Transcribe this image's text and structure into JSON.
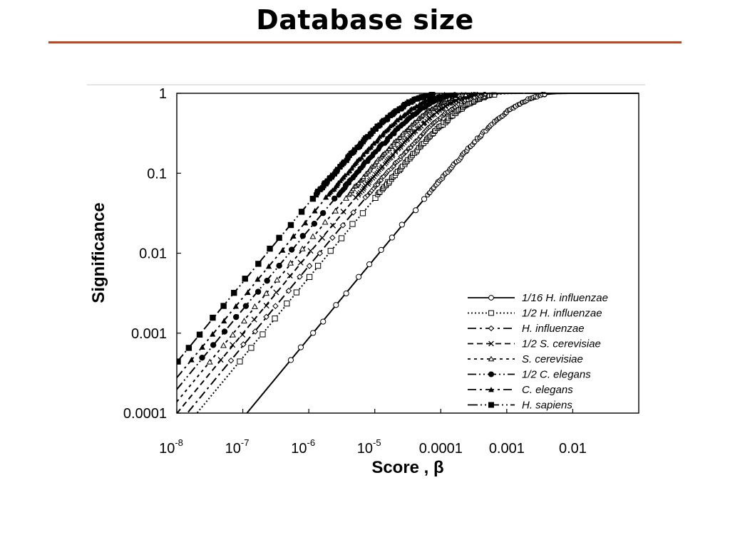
{
  "slide": {
    "title": "Database size"
  },
  "chart_data": {
    "type": "line",
    "xlabel": "Score , β",
    "ylabel": "Significance",
    "x_scale": "log",
    "y_scale": "log",
    "xlim": [
      1e-08,
      0.1
    ],
    "ylim": [
      0.0001,
      1
    ],
    "x_ticks": [
      {
        "v": 1e-08,
        "base": "10",
        "exp": "-8"
      },
      {
        "v": 1e-07,
        "base": "10",
        "exp": "-7"
      },
      {
        "v": 1e-06,
        "base": "10",
        "exp": "-6"
      },
      {
        "v": 1e-05,
        "base": "10",
        "exp": "-5"
      },
      {
        "v": 0.0001,
        "label": "0.0001"
      },
      {
        "v": 0.001,
        "label": "0.001"
      },
      {
        "v": 0.01,
        "label": "0.01"
      }
    ],
    "y_ticks": [
      {
        "v": 1,
        "label": "1"
      },
      {
        "v": 0.1,
        "label": "0.1"
      },
      {
        "v": 0.01,
        "label": "0.01"
      },
      {
        "v": 0.001,
        "label": "0.001"
      },
      {
        "v": 0.0001,
        "label": "0.0001"
      }
    ],
    "legend_position": "bottom-right",
    "series": [
      {
        "name": "1/16 H. influenzae",
        "marker": "circle",
        "dash": "",
        "x50": 0.0008
      },
      {
        "name": "1/2 H. influenzae",
        "marker": "square",
        "dash": "2,3",
        "x50": 0.00014
      },
      {
        "name": "H. influenzae",
        "marker": "diamond",
        "dash": "12,5,3,5",
        "x50": 0.0001
      },
      {
        "name": "1/2 S. cerevisiae",
        "marker": "x",
        "dash": "8,5",
        "x50": 7e-05
      },
      {
        "name": "S. cerevisiae",
        "marker": "triangle-open",
        "dash": "4,5",
        "x50": 5e-05
      },
      {
        "name": "1/2 C. elegans",
        "marker": "circle-filled",
        "dash": "12,4,2,4,2,4",
        "x50": 3.5e-05
      },
      {
        "name": "C. elegans",
        "marker": "triangle-filled",
        "dash": "12,5,3,5",
        "x50": 2.5e-05
      },
      {
        "name": "H. sapiens",
        "marker": "square-filled",
        "dash": "14,4,2,4,2,4",
        "x50": 1.6e-05
      }
    ]
  }
}
